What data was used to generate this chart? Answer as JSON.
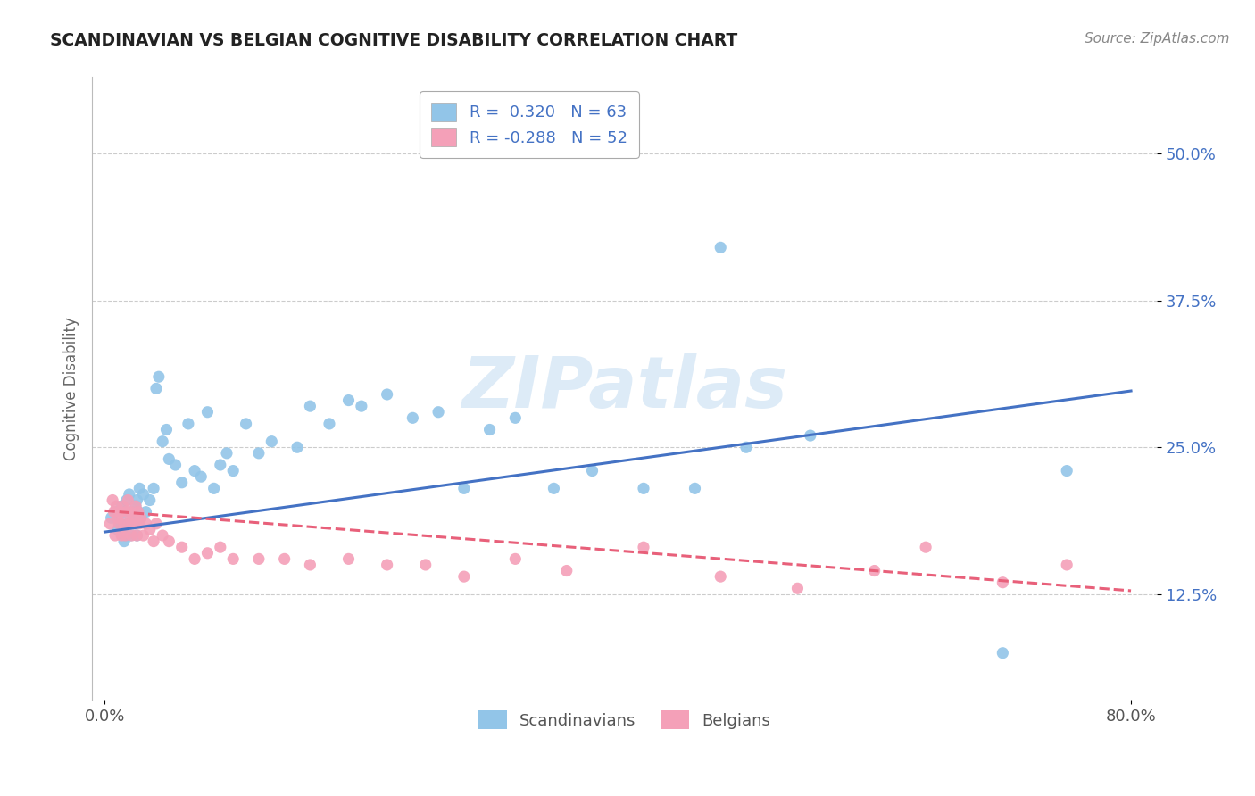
{
  "title": "SCANDINAVIAN VS BELGIAN COGNITIVE DISABILITY CORRELATION CHART",
  "source": "Source: ZipAtlas.com",
  "ylabel": "Cognitive Disability",
  "r_scand": 0.32,
  "n_scand": 63,
  "r_belg": -0.288,
  "n_belg": 52,
  "scand_color": "#92C5E8",
  "belg_color": "#F4A0B8",
  "scand_line_color": "#4472C4",
  "belg_line_color": "#E8607A",
  "watermark": "ZIPatlas",
  "background_color": "#FFFFFF",
  "grid_color": "#CCCCCC",
  "xlim": [
    -0.01,
    0.82
  ],
  "ylim": [
    0.035,
    0.565
  ],
  "y_ticks": [
    0.125,
    0.25,
    0.375,
    0.5
  ],
  "y_tick_labels": [
    "12.5%",
    "25.0%",
    "37.5%",
    "50.0%"
  ],
  "scand_line_x": [
    0.0,
    0.8
  ],
  "scand_line_y": [
    0.178,
    0.298
  ],
  "belg_line_x": [
    0.0,
    0.8
  ],
  "belg_line_y": [
    0.196,
    0.128
  ],
  "scand_pts_x": [
    0.005,
    0.008,
    0.01,
    0.012,
    0.013,
    0.015,
    0.015,
    0.016,
    0.017,
    0.018,
    0.019,
    0.02,
    0.021,
    0.022,
    0.023,
    0.024,
    0.025,
    0.025,
    0.026,
    0.027,
    0.028,
    0.03,
    0.032,
    0.035,
    0.038,
    0.04,
    0.042,
    0.045,
    0.048,
    0.05,
    0.055,
    0.06,
    0.065,
    0.07,
    0.075,
    0.08,
    0.085,
    0.09,
    0.095,
    0.1,
    0.11,
    0.12,
    0.13,
    0.15,
    0.16,
    0.175,
    0.19,
    0.2,
    0.22,
    0.24,
    0.26,
    0.28,
    0.3,
    0.32,
    0.35,
    0.38,
    0.42,
    0.46,
    0.5,
    0.55,
    0.48,
    0.7,
    0.75
  ],
  "scand_pts_y": [
    0.19,
    0.195,
    0.18,
    0.185,
    0.2,
    0.17,
    0.195,
    0.175,
    0.205,
    0.185,
    0.21,
    0.175,
    0.195,
    0.19,
    0.185,
    0.2,
    0.175,
    0.205,
    0.195,
    0.215,
    0.19,
    0.21,
    0.195,
    0.205,
    0.215,
    0.3,
    0.31,
    0.255,
    0.265,
    0.24,
    0.235,
    0.22,
    0.27,
    0.23,
    0.225,
    0.28,
    0.215,
    0.235,
    0.245,
    0.23,
    0.27,
    0.245,
    0.255,
    0.25,
    0.285,
    0.27,
    0.29,
    0.285,
    0.295,
    0.275,
    0.28,
    0.215,
    0.265,
    0.275,
    0.215,
    0.23,
    0.215,
    0.215,
    0.25,
    0.26,
    0.42,
    0.075,
    0.23
  ],
  "belg_pts_x": [
    0.004,
    0.006,
    0.007,
    0.008,
    0.009,
    0.01,
    0.011,
    0.012,
    0.013,
    0.014,
    0.015,
    0.016,
    0.017,
    0.018,
    0.019,
    0.02,
    0.021,
    0.022,
    0.023,
    0.024,
    0.025,
    0.026,
    0.027,
    0.028,
    0.03,
    0.032,
    0.035,
    0.038,
    0.04,
    0.045,
    0.05,
    0.06,
    0.07,
    0.08,
    0.09,
    0.1,
    0.12,
    0.14,
    0.16,
    0.19,
    0.22,
    0.25,
    0.28,
    0.32,
    0.36,
    0.42,
    0.48,
    0.54,
    0.6,
    0.64,
    0.7,
    0.75
  ],
  "belg_pts_y": [
    0.185,
    0.205,
    0.195,
    0.175,
    0.2,
    0.19,
    0.185,
    0.195,
    0.175,
    0.2,
    0.185,
    0.175,
    0.195,
    0.205,
    0.185,
    0.195,
    0.175,
    0.19,
    0.185,
    0.2,
    0.175,
    0.195,
    0.185,
    0.19,
    0.175,
    0.185,
    0.18,
    0.17,
    0.185,
    0.175,
    0.17,
    0.165,
    0.155,
    0.16,
    0.165,
    0.155,
    0.155,
    0.155,
    0.15,
    0.155,
    0.15,
    0.15,
    0.14,
    0.155,
    0.145,
    0.165,
    0.14,
    0.13,
    0.145,
    0.165,
    0.135,
    0.15
  ]
}
